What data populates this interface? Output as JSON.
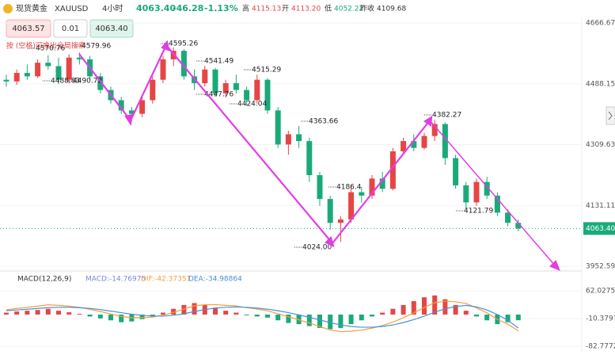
{
  "header": {
    "name": "现货黄金",
    "symbol": "XAUUSD",
    "period": "4小时",
    "last": "4063.40",
    "change": "-46.28",
    "change_pct": "-1.13%",
    "high_label": "高",
    "high": "4115.13",
    "open_label": "开",
    "open": "4113.20",
    "low_label": "低",
    "low": "4052.22",
    "prev_label": "昨收",
    "prev": "4109.68"
  },
  "trade": {
    "sell": "4063.57",
    "qty": "0.01",
    "buy": "4063.40",
    "hint": "按 (空格)可唤出全局搜索"
  },
  "annotations": [
    "4570.76",
    "4488.83",
    "4490.72",
    "4579.96",
    "4595.26",
    "4541.49",
    "4515.29",
    "4447.76",
    "4424.04",
    "4363.66",
    "4186.4",
    "4024.00",
    "4382.27",
    "4121.79"
  ],
  "chart_data": [
    {
      "type": "candlestick",
      "ylim": [
        3952.59,
        4666.67
      ],
      "yticks": [
        4666.67,
        4488.15,
        4309.63,
        4131.11,
        3952.59
      ],
      "last_price": {
        "value": 4063.4,
        "label": "4063.40"
      },
      "up_color": "#e64545",
      "down_color": "#1aaa7a",
      "candles": [
        [
          4500,
          4515,
          4480,
          4495
        ],
        [
          4495,
          4530,
          4485,
          4520
        ],
        [
          4520,
          4545,
          4500,
          4510
        ],
        [
          4510,
          4560,
          4505,
          4550
        ],
        [
          4550,
          4572,
          4530,
          4540
        ],
        [
          4540,
          4565,
          4488,
          4500
        ],
        [
          4500,
          4575,
          4490,
          4565
        ],
        [
          4565,
          4580,
          4545,
          4560
        ],
        [
          4560,
          4570,
          4500,
          4510
        ],
        [
          4510,
          4520,
          4460,
          4470
        ],
        [
          4470,
          4480,
          4430,
          4440
        ],
        [
          4440,
          4450,
          4400,
          4410
        ],
        [
          4410,
          4420,
          4385,
          4400
        ],
        [
          4400,
          4450,
          4390,
          4440
        ],
        [
          4440,
          4510,
          4430,
          4500
        ],
        [
          4500,
          4570,
          4490,
          4560
        ],
        [
          4560,
          4595,
          4540,
          4585
        ],
        [
          4585,
          4590,
          4500,
          4510
        ],
        [
          4510,
          4530,
          4470,
          4490
        ],
        [
          4490,
          4541,
          4480,
          4530
        ],
        [
          4530,
          4535,
          4450,
          4460
        ],
        [
          4460,
          4500,
          4448,
          4490
        ],
        [
          4490,
          4515,
          4460,
          4470
        ],
        [
          4470,
          4480,
          4424,
          4440
        ],
        [
          4440,
          4515,
          4430,
          4500
        ],
        [
          4500,
          4505,
          4400,
          4410
        ],
        [
          4410,
          4420,
          4300,
          4310
        ],
        [
          4310,
          4350,
          4280,
          4340
        ],
        [
          4340,
          4364,
          4300,
          4320
        ],
        [
          4320,
          4330,
          4200,
          4220
        ],
        [
          4220,
          4230,
          4130,
          4150
        ],
        [
          4150,
          4160,
          4060,
          4080
        ],
        [
          4080,
          4100,
          4024,
          4090
        ],
        [
          4090,
          4190,
          4080,
          4170
        ],
        [
          4170,
          4186,
          4140,
          4160
        ],
        [
          4160,
          4220,
          4150,
          4210
        ],
        [
          4210,
          4230,
          4170,
          4180
        ],
        [
          4180,
          4300,
          4175,
          4290
        ],
        [
          4290,
          4330,
          4280,
          4320
        ],
        [
          4320,
          4340,
          4290,
          4300
        ],
        [
          4300,
          4345,
          4295,
          4335
        ],
        [
          4335,
          4382,
          4320,
          4370
        ],
        [
          4370,
          4375,
          4250,
          4270
        ],
        [
          4270,
          4280,
          4180,
          4190
        ],
        [
          4190,
          4200,
          4122,
          4140
        ],
        [
          4140,
          4210,
          4130,
          4200
        ],
        [
          4200,
          4215,
          4150,
          4160
        ],
        [
          4160,
          4170,
          4100,
          4110
        ],
        [
          4110,
          4120,
          4070,
          4080
        ],
        [
          4080,
          4090,
          4055,
          4063.4
        ]
      ]
    },
    {
      "type": "macd",
      "title": "MACD(12,26,9)",
      "macd_label": "MACD:-14.76975",
      "dif_label": "DIF:-42.37351",
      "dea_label": "DEA:-34.98864",
      "ylim": [
        -82.77724,
        62.0275
      ],
      "yticks": [
        62.0275,
        -10.37973,
        -82.77724
      ],
      "histogram": [
        5,
        8,
        10,
        12,
        15,
        10,
        6,
        2,
        -5,
        -10,
        -15,
        -20,
        -18,
        -12,
        -5,
        5,
        15,
        25,
        30,
        25,
        18,
        10,
        5,
        -2,
        -5,
        -8,
        -15,
        -22,
        -25,
        -30,
        -35,
        -38,
        -35,
        -25,
        -15,
        -5,
        5,
        15,
        25,
        35,
        45,
        50,
        40,
        25,
        10,
        -5,
        -15,
        -25,
        -20,
        -14.76975
      ],
      "series": [
        {
          "name": "DIF",
          "color": "#f0a040",
          "values": [
            12.5,
            16,
            19,
            22,
            25.5,
            24,
            22,
            19,
            13.5,
            8,
            1.5,
            -5,
            -8,
            -8,
            -6.5,
            -1.5,
            5.5,
            14.5,
            23,
            25.5,
            26,
            24,
            22.5,
            18,
            14.5,
            10,
            2.5,
            -6,
            -13.5,
            -22,
            -31.5,
            -40,
            -44.5,
            -43.5,
            -40.5,
            -35.5,
            -28.5,
            -19.5,
            -8.5,
            4.5,
            18.5,
            31,
            35,
            33.5,
            29,
            17.5,
            4.5,
            -12.5,
            -25,
            -42.37351
          ]
        },
        {
          "name": "DEA",
          "color": "#4a90d9",
          "values": [
            10,
            12,
            14,
            16,
            18,
            19,
            19,
            18,
            16,
            13,
            9,
            5,
            1,
            -2,
            -4,
            -4,
            -2,
            2,
            8,
            13,
            17,
            19,
            20,
            19,
            17,
            14,
            10,
            5,
            -1,
            -7,
            -14,
            -21,
            -27,
            -31,
            -33,
            -33,
            -31,
            -27,
            -21,
            -13,
            -4,
            6,
            15,
            21,
            24,
            20,
            12,
            0,
            -15,
            -34.98864
          ]
        }
      ]
    }
  ]
}
